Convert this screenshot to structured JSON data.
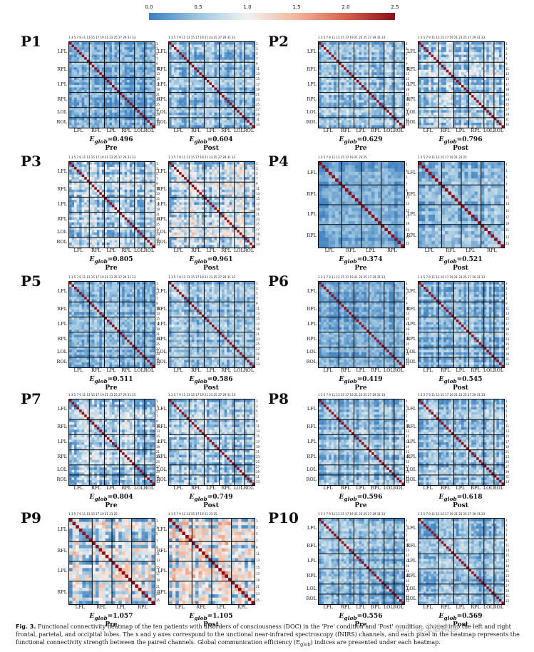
{
  "colorbar": {
    "ticks": [
      "0.0",
      "0.5",
      "1.0",
      "1.5",
      "2.0",
      "2.5"
    ],
    "colors": [
      "#3d7fbf",
      "#f2f2f2",
      "#d6604d",
      "#8a0f1b"
    ]
  },
  "panels": [
    {
      "id": "P1",
      "regions": [
        "LFL",
        "RFL",
        "LPL",
        "RPL",
        "LOL",
        "ROL"
      ],
      "xregions": [
        "LFL",
        "RFL",
        "LPL",
        "RPL",
        "LOL",
        "ROL"
      ],
      "channels": 34,
      "pre": {
        "eglob": "0.496",
        "cond": "Pre"
      },
      "post": {
        "eglob": "0.604",
        "cond": "Post"
      }
    },
    {
      "id": "P2",
      "regions": [
        "LFL",
        "RFL",
        "LPL",
        "RPL",
        "LOL",
        "ROL"
      ],
      "xregions": [
        "LFL",
        "RFL",
        "LPL",
        "RPL",
        "LOL",
        "ROL"
      ],
      "channels": 34,
      "pre": {
        "eglob": "0.629",
        "cond": "Pre"
      },
      "post": {
        "eglob": "0.796",
        "cond": "Post"
      }
    },
    {
      "id": "P3",
      "regions": [
        "LFL",
        "RFL",
        "LPL",
        "RPL",
        "LOL",
        "ROL"
      ],
      "xregions": [
        "LFL",
        "RFL",
        "LPL",
        "RPL",
        "LOL",
        "ROL"
      ],
      "channels": 34,
      "pre": {
        "eglob": "0.805",
        "cond": "Pre"
      },
      "post": {
        "eglob": "0.961",
        "cond": "Post"
      }
    },
    {
      "id": "P4",
      "regions": [
        "LFL",
        "RFL",
        "LPL",
        "RPL"
      ],
      "xregions": [
        "LFL",
        "RFL",
        "LPL",
        "RPL"
      ],
      "channels": 26,
      "pre": {
        "eglob": "0.374",
        "cond": "Pre"
      },
      "post": {
        "eglob": "0.521",
        "cond": "Post"
      }
    },
    {
      "id": "P5",
      "regions": [
        "LFL",
        "RFL",
        "LPL",
        "RPL",
        "LOL",
        "ROL"
      ],
      "xregions": [
        "LFL",
        "RFL",
        "LPL",
        "RPL",
        "LOL",
        "ROL"
      ],
      "channels": 34,
      "pre": {
        "eglob": "0.511",
        "cond": "Pre"
      },
      "post": {
        "eglob": "0.586",
        "cond": "Post"
      }
    },
    {
      "id": "P6",
      "regions": [
        "LFL",
        "RFL",
        "LPL",
        "RPL",
        "LOL",
        "ROL"
      ],
      "xregions": [
        "LFL",
        "RFL",
        "LPL",
        "RPL",
        "LOL",
        "ROL"
      ],
      "channels": 34,
      "pre": {
        "eglob": "0.419",
        "cond": "Pre"
      },
      "post": {
        "eglob": "0.545",
        "cond": "Post"
      }
    },
    {
      "id": "P7",
      "regions": [
        "LFL",
        "RFL",
        "LPL",
        "RPL",
        "LOL",
        "ROL"
      ],
      "xregions": [
        "LFL",
        "RFL",
        "LPL",
        "RPL",
        "LOL",
        "ROL"
      ],
      "channels": 34,
      "pre": {
        "eglob": "0.804",
        "cond": "Pre"
      },
      "post": {
        "eglob": "0.749",
        "cond": "Post"
      }
    },
    {
      "id": "P8",
      "regions": [
        "LFL",
        "RFL",
        "LPL",
        "RPL",
        "LOL",
        "ROL"
      ],
      "xregions": [
        "LFL",
        "RFL",
        "LPL",
        "RPL",
        "LOL",
        "ROL"
      ],
      "channels": 34,
      "pre": {
        "eglob": "0.596",
        "cond": "Pre"
      },
      "post": {
        "eglob": "0.618",
        "cond": "Post"
      }
    },
    {
      "id": "P9",
      "regions": [
        "LFL",
        "RFL",
        "LPL",
        "RPL"
      ],
      "xregions": [
        "LFL",
        "RFL",
        "LPL",
        "RPL"
      ],
      "channels": 26,
      "pre": {
        "eglob": "1.057",
        "cond": "Pre"
      },
      "post": {
        "eglob": "1.105",
        "cond": "Post"
      }
    },
    {
      "id": "P10",
      "regions": [
        "LFL",
        "RFL",
        "LPL",
        "RPL",
        "LOL",
        "ROL"
      ],
      "xregions": [
        "LFL",
        "RFL",
        "LPL",
        "RPL",
        "LOL",
        "ROL"
      ],
      "channels": 34,
      "pre": {
        "eglob": "0.556",
        "cond": "Pre"
      },
      "post": {
        "eglob": "0.569",
        "cond": "Post"
      }
    }
  ],
  "eglob_prefix": "E",
  "eglob_sub": "glob",
  "caption": {
    "label": "Fig. 3.",
    "text": "Functional connectivity heatmap of the ten patients with disorders of consciousness (DOC) in the 'Pre' condition and 'Post' condition, divided into the left and right frontal, parietal, and occipital lobes. The x and y axes correspond to the unctional near-infrared spectroscopy (fNIRS) channels, and each pixel in the heatmap represents the functional connectivity strength between the paired channels. Global communication efficiency (E",
    "sub": "glob",
    "tail": ") indices are presented under each heatmap."
  },
  "watermark": "知乎 @文献精读"
}
